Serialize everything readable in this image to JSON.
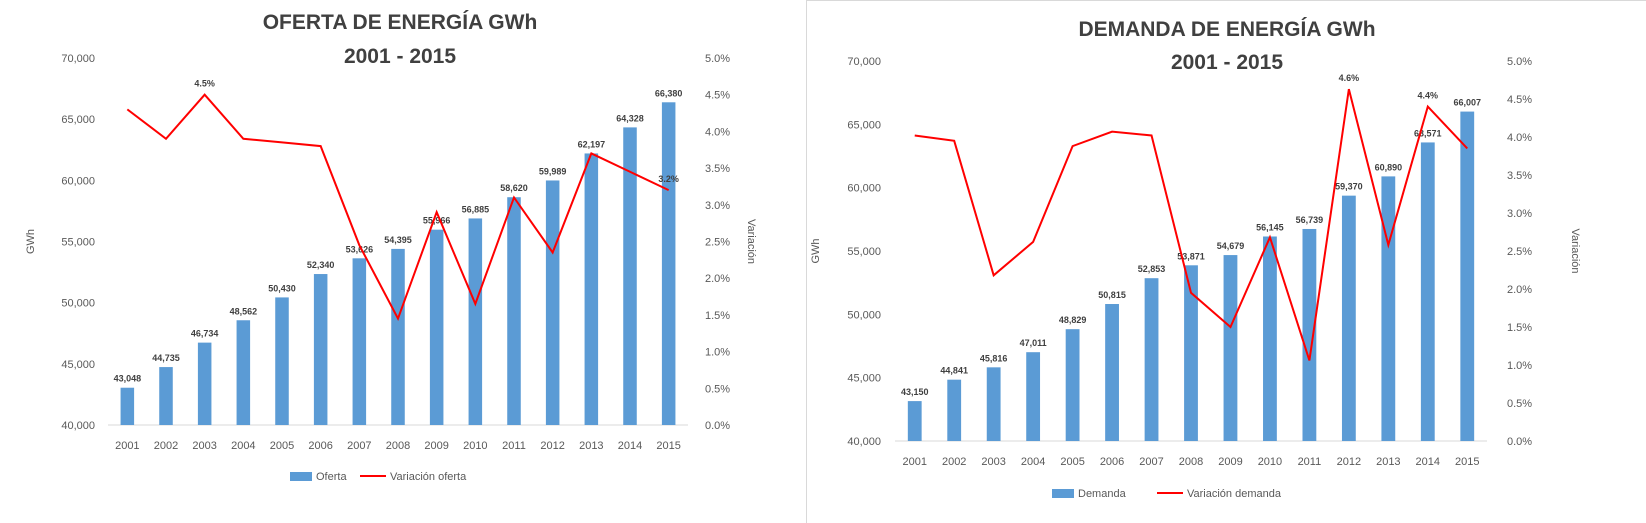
{
  "colors": {
    "bar": "#5b9bd5",
    "line": "#ff0000",
    "axis": "#d9d9d9",
    "text": "#595959",
    "title": "#404040"
  },
  "charts": [
    {
      "title_line1": "OFERTA DE ENERGÍA GWh",
      "title_line2": "2001 - 2015",
      "y_label": "GWh",
      "y2_label": "Variación",
      "y_ticks": [
        "40,000",
        "45,000",
        "50,000",
        "55,000",
        "60,000",
        "65,000",
        "70,000"
      ],
      "y2_ticks": [
        "0.0%",
        "0.5%",
        "1.0%",
        "1.5%",
        "2.0%",
        "2.5%",
        "3.0%",
        "3.5%",
        "4.0%",
        "4.5%",
        "5.0%"
      ],
      "legend": {
        "bar": "Oferta",
        "line": "Variación oferta"
      },
      "line_labels": [
        {
          "text": "4.5%",
          "index": 2
        },
        {
          "text": "3.2%",
          "index": 14
        }
      ]
    },
    {
      "title_line1": "DEMANDA DE ENERGÍA GWh",
      "title_line2": "2001 - 2015",
      "y_label": "GWh",
      "y2_label": "Variación",
      "y_ticks": [
        "40,000",
        "45,000",
        "50,000",
        "55,000",
        "60,000",
        "65,000",
        "70,000"
      ],
      "y2_ticks": [
        "0.0%",
        "0.5%",
        "1.0%",
        "1.5%",
        "2.0%",
        "2.5%",
        "3.0%",
        "3.5%",
        "4.0%",
        "4.5%",
        "5.0%"
      ],
      "legend": {
        "bar": "Demanda",
        "line": "Variación demanda"
      },
      "line_labels": [
        {
          "text": "4.6%",
          "index": 11
        },
        {
          "text": "4.4%",
          "index": 13
        }
      ]
    }
  ],
  "chart_data": [
    {
      "type": "bar",
      "title": "OFERTA DE ENERGÍA GWh 2001 - 2015",
      "categories": [
        "2001",
        "2002",
        "2003",
        "2004",
        "2005",
        "2006",
        "2007",
        "2008",
        "2009",
        "2010",
        "2011",
        "2012",
        "2013",
        "2014",
        "2015"
      ],
      "ylabel": "GWh",
      "y2label": "Variación",
      "ylim": [
        40000,
        70000
      ],
      "y2lim": [
        0,
        5
      ],
      "series": [
        {
          "name": "Oferta",
          "type": "bar",
          "axis": "left",
          "values": [
            43048,
            44735,
            46734,
            48562,
            50430,
            52340,
            53626,
            54395,
            55966,
            56885,
            58620,
            59989,
            62197,
            64328,
            66380
          ],
          "labels": [
            "43,048",
            "44,735",
            "46,734",
            "48,562",
            "50,430",
            "52,340",
            "53,626",
            "54,395",
            "55,966",
            "56,885",
            "58,620",
            "59,989",
            "62,197",
            "64,328",
            "66,380"
          ]
        },
        {
          "name": "Variación oferta",
          "type": "line",
          "axis": "right",
          "unit": "%",
          "values": [
            4.3,
            3.9,
            4.5,
            3.9,
            3.85,
            3.8,
            2.45,
            1.45,
            2.9,
            1.65,
            3.1,
            2.35,
            3.7,
            3.45,
            3.2
          ]
        }
      ],
      "legend": "bottom"
    },
    {
      "type": "bar",
      "title": "DEMANDA DE ENERGÍA GWh 2001 - 2015",
      "categories": [
        "2001",
        "2002",
        "2003",
        "2004",
        "2005",
        "2006",
        "2007",
        "2008",
        "2009",
        "2010",
        "2011",
        "2012",
        "2013",
        "2014",
        "2015"
      ],
      "ylabel": "GWh",
      "y2label": "Variación",
      "ylim": [
        40000,
        70000
      ],
      "y2lim": [
        0,
        5
      ],
      "series": [
        {
          "name": "Demanda",
          "type": "bar",
          "axis": "left",
          "values": [
            43150,
            44841,
            45816,
            47011,
            48829,
            50815,
            52853,
            53871,
            54679,
            56145,
            56739,
            59370,
            60890,
            63571,
            66007
          ],
          "labels": [
            "43,150",
            "44,841",
            "45,816",
            "47,011",
            "48,829",
            "50,815",
            "52,853",
            "53,871",
            "54,679",
            "56,145",
            "56,739",
            "59,370",
            "60,890",
            "63,571",
            "66,007"
          ]
        },
        {
          "name": "Variación demanda",
          "type": "line",
          "axis": "right",
          "unit": "%",
          "values": [
            4.02,
            3.95,
            2.18,
            2.62,
            3.88,
            4.07,
            4.02,
            1.95,
            1.5,
            2.68,
            1.06,
            4.63,
            2.58,
            4.4,
            3.85
          ]
        }
      ],
      "legend": "bottom"
    }
  ]
}
